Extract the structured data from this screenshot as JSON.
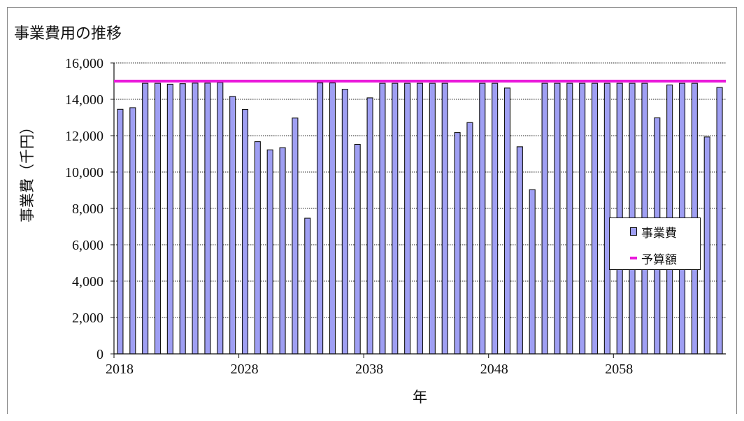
{
  "chart_data": {
    "type": "bar",
    "title": "事業費用の推移",
    "xlabel": "年",
    "ylabel": "事業費（千円）",
    "ylim": [
      0,
      16000
    ],
    "yticks": [
      "0",
      "2,000",
      "4,000",
      "6,000",
      "8,000",
      "10,000",
      "12,000",
      "14,000",
      "16,000"
    ],
    "xtick_labels": [
      "2018",
      "2028",
      "2038",
      "2048",
      "2058"
    ],
    "x_start": 2018,
    "x_end": 2067,
    "grid": true,
    "legend_position": "right",
    "series": [
      {
        "name": "事業費",
        "color": "#9f9ff3",
        "values": [
          13450,
          13540,
          14880,
          14880,
          14830,
          14860,
          14890,
          14890,
          14920,
          14160,
          13440,
          11670,
          11220,
          11340,
          12970,
          7460,
          14900,
          14900,
          14550,
          11520,
          14080,
          14880,
          14880,
          14880,
          14880,
          14880,
          14880,
          12170,
          12720,
          14880,
          14880,
          14620,
          11390,
          9030,
          14880,
          14880,
          14880,
          14880,
          14880,
          14880,
          14880,
          14880,
          14880,
          12980,
          14790,
          14880,
          14880,
          11930,
          14650
        ]
      },
      {
        "name": "予算額",
        "color": "#ea19db",
        "value": 15000
      }
    ]
  }
}
